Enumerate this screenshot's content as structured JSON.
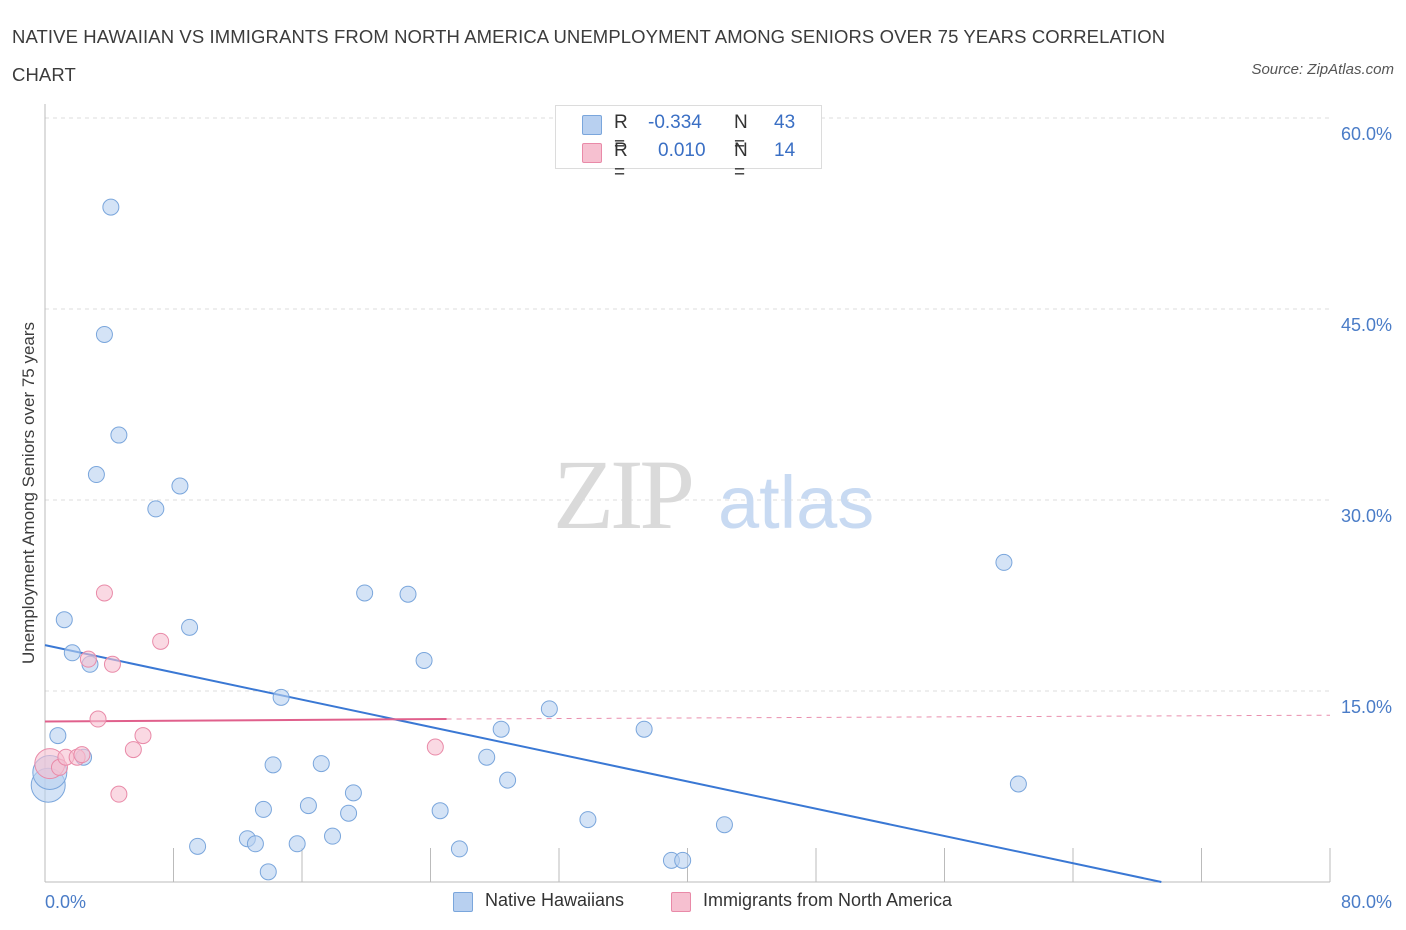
{
  "title": "NATIVE HAWAIIAN VS IMMIGRANTS FROM NORTH AMERICA UNEMPLOYMENT AMONG SENIORS OVER 75 YEARS CORRELATION CHART",
  "source": "Source: ZipAtlas.com",
  "watermark": {
    "zip": "ZIP",
    "atlas": "atlas"
  },
  "legend": {
    "r_label": "R =",
    "n_label": "N =",
    "rows": [
      {
        "r": "-0.334",
        "n": "43"
      },
      {
        "r": "0.010",
        "n": "14"
      }
    ]
  },
  "colors": {
    "blue_fill": "#b8d0f0",
    "blue_stroke": "#7aa6dc",
    "blue_line": "#3a78d4",
    "pink_fill": "#f6c0d0",
    "pink_stroke": "#e98aa8",
    "pink_line": "#e0608c"
  },
  "chart_data": {
    "type": "scatter",
    "title": "NATIVE HAWAIIAN VS IMMIGRANTS FROM NORTH AMERICA UNEMPLOYMENT AMONG SENIORS OVER 75 YEARS CORRELATION CHART",
    "xlabel": "",
    "ylabel": "Unemployment Among Seniors over 75 years",
    "xlim": [
      0,
      80
    ],
    "ylim": [
      0,
      60
    ],
    "x_tick_labels": [
      "0.0%",
      "80.0%"
    ],
    "y_ticks": [
      15,
      30,
      45,
      60
    ],
    "y_tick_labels": [
      "15.0%",
      "30.0%",
      "45.0%",
      "60.0%"
    ],
    "grid": "horizontal dashed",
    "legend_placement": "bottom-center",
    "series": [
      {
        "name": "Native Hawaiians",
        "r": -0.334,
        "n": 43,
        "trend": {
          "x": [
            0,
            69.5
          ],
          "y": [
            18.6,
            0
          ]
        },
        "points": [
          [
            0.2,
            7.6
          ],
          [
            0.8,
            11.5
          ],
          [
            1.2,
            20.6
          ],
          [
            1.7,
            18.0
          ],
          [
            2.4,
            9.8
          ],
          [
            2.8,
            17.1
          ],
          [
            3.2,
            32.0
          ],
          [
            3.7,
            43.0
          ],
          [
            4.1,
            53.0
          ],
          [
            4.6,
            35.1
          ],
          [
            6.9,
            29.3
          ],
          [
            8.4,
            31.1
          ],
          [
            9.0,
            20.0
          ],
          [
            9.5,
            2.8
          ],
          [
            12.6,
            3.4
          ],
          [
            13.1,
            3.0
          ],
          [
            13.6,
            5.7
          ],
          [
            13.9,
            0.8
          ],
          [
            14.2,
            9.2
          ],
          [
            14.7,
            14.5
          ],
          [
            15.7,
            3.0
          ],
          [
            16.4,
            6.0
          ],
          [
            17.2,
            9.3
          ],
          [
            17.9,
            3.6
          ],
          [
            18.9,
            5.4
          ],
          [
            19.2,
            7.0
          ],
          [
            19.9,
            22.7
          ],
          [
            22.6,
            22.6
          ],
          [
            23.6,
            17.4
          ],
          [
            24.6,
            5.6
          ],
          [
            25.8,
            2.6
          ],
          [
            27.5,
            9.8
          ],
          [
            28.4,
            12.0
          ],
          [
            28.8,
            8.0
          ],
          [
            31.4,
            13.6
          ],
          [
            33.8,
            4.9
          ],
          [
            37.3,
            12.0
          ],
          [
            39.0,
            1.7
          ],
          [
            39.7,
            1.7
          ],
          [
            42.3,
            4.5
          ],
          [
            59.7,
            25.1
          ],
          [
            60.6,
            7.7
          ],
          [
            0.3,
            8.6
          ]
        ]
      },
      {
        "name": "Immigrants from North America",
        "r": 0.01,
        "n": 14,
        "trend": {
          "x": [
            0,
            25.0
          ],
          "y": [
            12.6,
            12.8
          ]
        },
        "trend_extension": {
          "x": [
            25.0,
            80
          ],
          "y": [
            12.8,
            13.1
          ]
        },
        "points": [
          [
            0.3,
            9.3
          ],
          [
            0.9,
            9.0
          ],
          [
            1.3,
            9.8
          ],
          [
            2.0,
            9.8
          ],
          [
            2.3,
            10.0
          ],
          [
            2.7,
            17.5
          ],
          [
            3.3,
            12.8
          ],
          [
            3.7,
            22.7
          ],
          [
            4.2,
            17.1
          ],
          [
            4.6,
            6.9
          ],
          [
            5.5,
            10.4
          ],
          [
            6.1,
            11.5
          ],
          [
            7.2,
            18.9
          ],
          [
            24.3,
            10.6
          ]
        ]
      }
    ]
  }
}
